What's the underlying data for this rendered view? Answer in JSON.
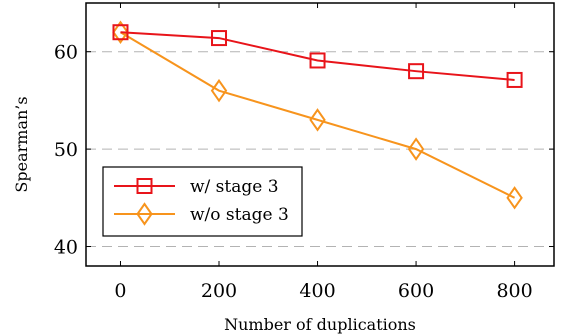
{
  "chart_data": {
    "type": "line",
    "title": "",
    "xlabel": "Number of duplications",
    "ylabel": "Spearman’s",
    "x": [
      0,
      200,
      400,
      600,
      800
    ],
    "xticks": [
      "0",
      "200",
      "400",
      "600",
      "800"
    ],
    "yticks": [
      "40",
      "50",
      "60"
    ],
    "xlim": [
      -70,
      880
    ],
    "ylim": [
      38,
      65
    ],
    "grid": "horizontal dashed",
    "legend_position": "lower-left",
    "series": [
      {
        "name": "w/ stage 3",
        "values": [
          62,
          61.4,
          59.1,
          58,
          57.1
        ],
        "color": "#e8141a",
        "marker": "square"
      },
      {
        "name": "w/o stage 3",
        "values": [
          62,
          56,
          53,
          50,
          45
        ],
        "color": "#f7941d",
        "marker": "diamond"
      }
    ]
  }
}
